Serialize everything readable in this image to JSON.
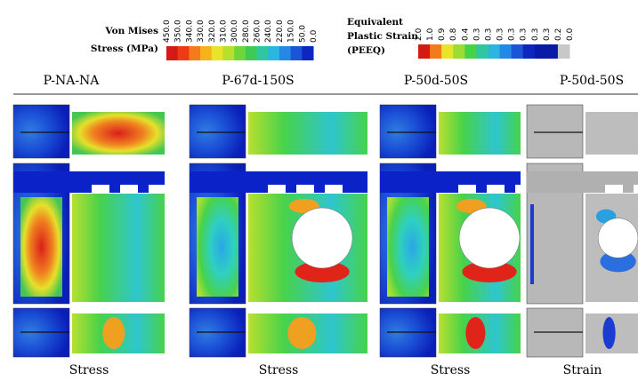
{
  "stress_legend": {
    "title_lines": [
      "Von Mises",
      "Stress (MPa)"
    ],
    "ticks": [
      "450.0",
      "350.0",
      "340.0",
      "330.0",
      "320.0",
      "310.0",
      "300.0",
      "280.0",
      "260.0",
      "240.0",
      "220.0",
      "150.0",
      "50.0",
      "0.0"
    ]
  },
  "strain_legend": {
    "title_lines": [
      "Equivalent",
      "Plastic Strain",
      "(PEEQ)"
    ],
    "ticks": [
      "2.0",
      "1.0",
      "0.9",
      "0.8",
      "0.4",
      "0.3",
      "0.3",
      "0.3",
      "0.3",
      "0.3",
      "0.3",
      "0.3",
      "0.2",
      "0.0"
    ]
  },
  "columns": [
    {
      "label": "P-NA-NA",
      "caption": "Stress"
    },
    {
      "label": "P-67d-150S",
      "caption": "Stress"
    },
    {
      "label": "P-50d-50S",
      "caption": "Stress"
    },
    {
      "label": "P-50d-50S",
      "caption": "Strain"
    }
  ]
}
